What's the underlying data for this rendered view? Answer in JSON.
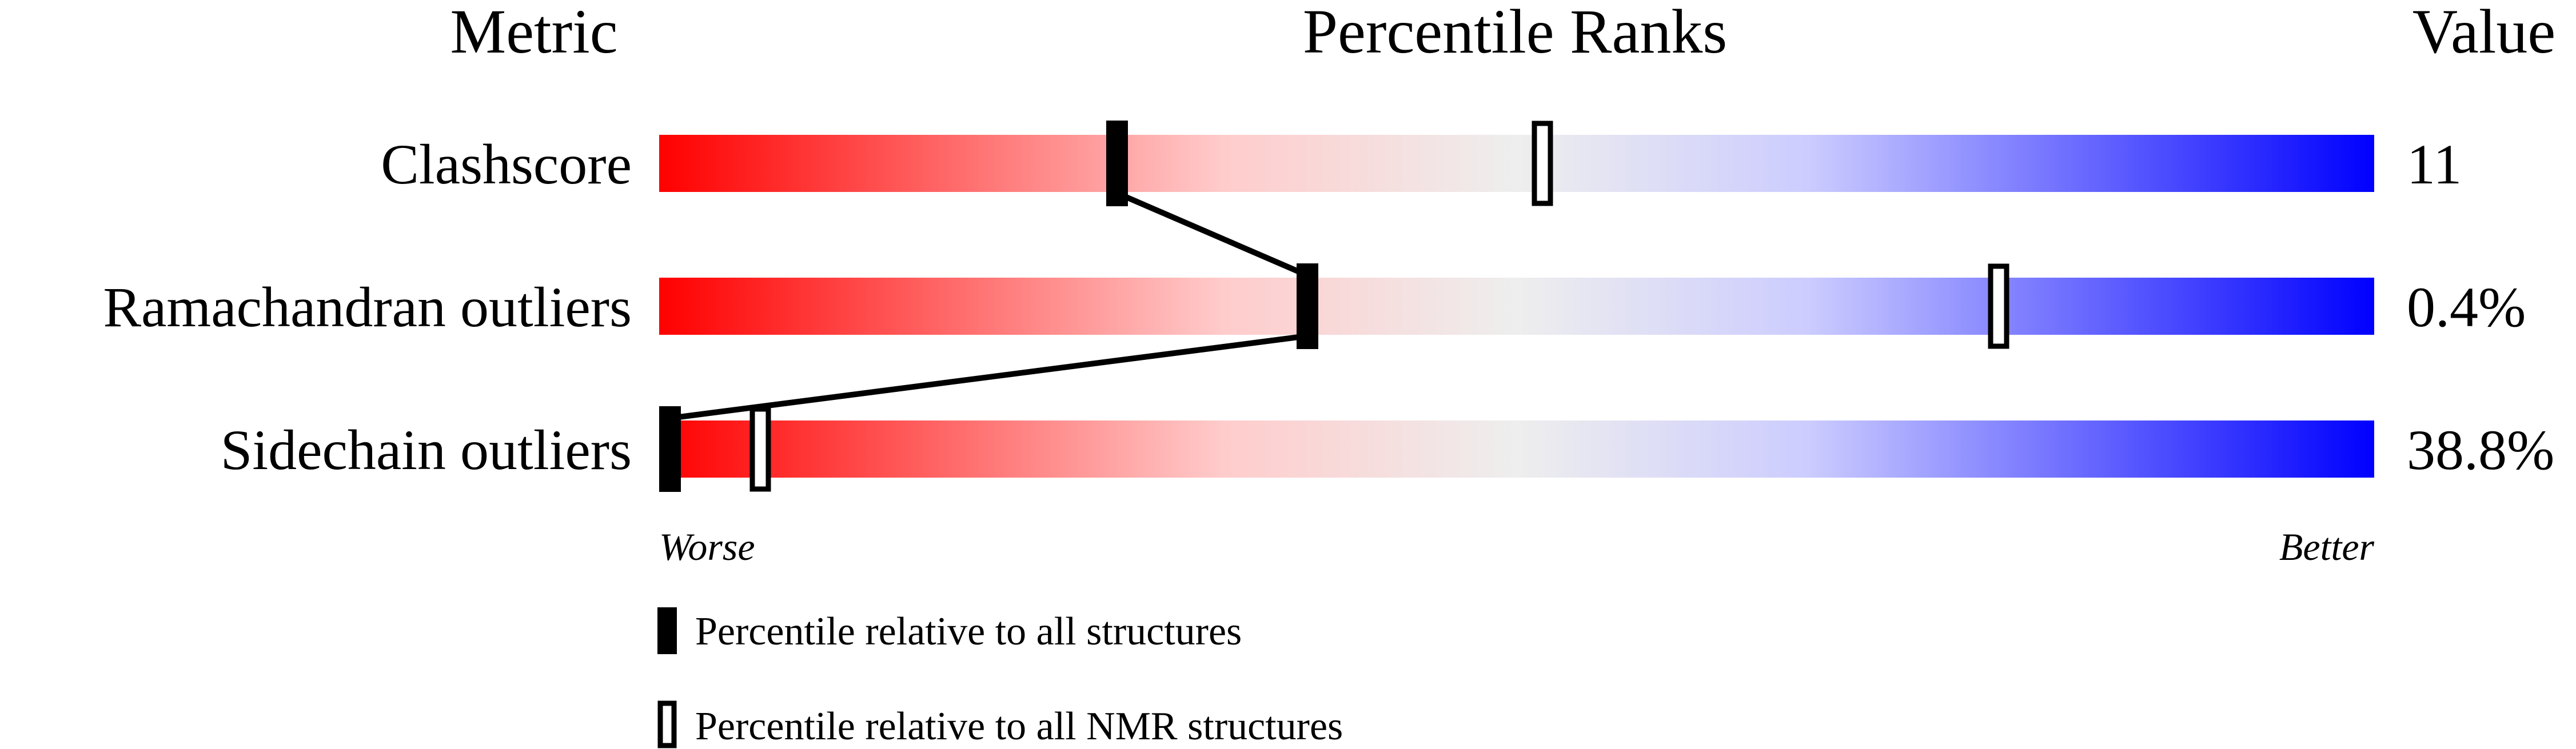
{
  "chart_data": {
    "type": "percentile-slider",
    "headers": {
      "metric": "Metric",
      "ranks": "Percentile Ranks",
      "value": "Value"
    },
    "xlim": [
      0,
      100
    ],
    "axis_labels": {
      "left": "Worse",
      "right": "Better"
    },
    "gradient_colors": [
      "#ff0000",
      "#ffcccc",
      "#eeeeee",
      "#ccccff",
      "#0000ff"
    ],
    "metrics": [
      {
        "name": "Clashscore",
        "value": "11",
        "percentile_all": 26.7,
        "percentile_nmr": 51.5
      },
      {
        "name": "Ramachandran outliers",
        "value": "0.4%",
        "percentile_all": 37.8,
        "percentile_nmr": 78.1
      },
      {
        "name": "Sidechain outliers",
        "value": "38.8%",
        "percentile_all": 0.6,
        "percentile_nmr": 5.9
      }
    ],
    "legend": [
      {
        "label": "Percentile relative to all structures",
        "style": "filled"
      },
      {
        "label": "Percentile relative to all NMR structures",
        "style": "outlined"
      }
    ]
  }
}
